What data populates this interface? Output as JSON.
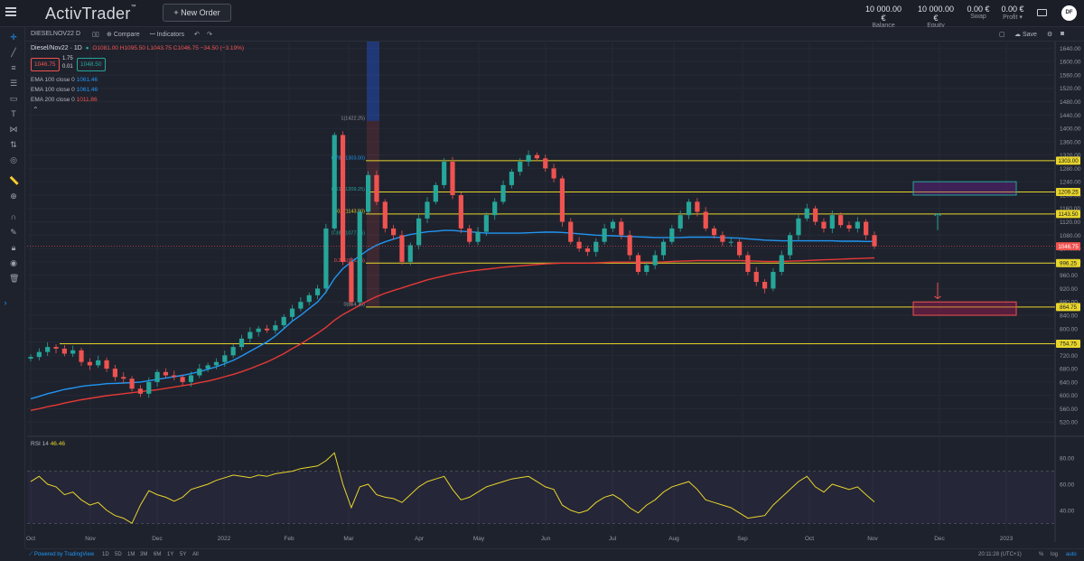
{
  "app": {
    "logo": "ActivTrader",
    "logo_tm": "™",
    "new_order_label": "+ New Order",
    "stats": [
      {
        "value": "10 000.00 €",
        "label": "Balance"
      },
      {
        "value": "10 000.00 €",
        "label": "Equity"
      },
      {
        "value": "0.00 €",
        "label": "Swap"
      },
      {
        "value": "0.00 €",
        "label": "Profit"
      }
    ],
    "avatar": "DF"
  },
  "toolbar": {
    "symbol": "DIESELNOV22",
    "interval": "D",
    "compare": "Compare",
    "indicators": "Indicators",
    "save": "Save"
  },
  "legend": {
    "symbol": "Diesel/Nov22 · 1D",
    "ohlc": "O1081.00  H1095.50  L1043.75  C1046.75  −34.50 (−3.19%)",
    "sell": "1046.75",
    "spread_top": "1.75",
    "spread_bottom": "0.01",
    "buy": "1048.50",
    "ema1": "EMA 100 close 0",
    "ema1_val": "1061.46",
    "ema2": "EMA 100 close 0",
    "ema2_val": "1061.46",
    "ema3": "EMA 200 close 0",
    "ema3_val": "1011.86",
    "rsi": "RSI 14",
    "rsi_val": "46.46"
  },
  "bottombar": {
    "ranges": [
      "1D",
      "5D",
      "1M",
      "3M",
      "6M",
      "1Y",
      "5Y",
      "All"
    ],
    "powered": "Powered by TradingView",
    "clock": "20:11:28 (UTC+1)",
    "pct": "%",
    "log": "log",
    "auto": "auto"
  },
  "colors": {
    "up": "#26a69a",
    "down": "#ef5350",
    "ema100": "#2196f3",
    "ema200": "#e53935",
    "fib": "#e7d52b",
    "rsi": "#e7d52b",
    "bg": "#1e222d"
  },
  "chart_data": {
    "type": "candlestick",
    "y_ticks": [
      1640,
      1600,
      1560,
      1520,
      1480,
      1440,
      1400,
      1360,
      1320,
      1280,
      1240,
      1200,
      1160,
      1120,
      1080,
      1040,
      1000,
      960,
      920,
      880,
      840,
      800,
      760,
      720,
      680,
      640,
      600,
      560,
      520
    ],
    "y_range": [
      480,
      1660
    ],
    "x_ticks": [
      "Oct",
      "Nov",
      "Dec",
      "2022",
      "Feb",
      "Mar",
      "Apr",
      "May",
      "Jun",
      "Jul",
      "Aug",
      "Sep",
      "Oct",
      "Nov",
      "Dec",
      "2023"
    ],
    "fib_levels": [
      {
        "ratio": "1",
        "price": 1422.25,
        "label": "1(1422.25)"
      },
      {
        "ratio": "0.786",
        "price": 1303.0,
        "label": "0.786(1303.00)"
      },
      {
        "ratio": "0.618",
        "price": 1209.25,
        "label": "0.618(1209.25)"
      },
      {
        "ratio": "0.5",
        "price": 1143.5,
        "label": "0.5(1143.50)"
      },
      {
        "ratio": "0.382",
        "price": 1077.75,
        "label": "0.382(1077.75)"
      },
      {
        "ratio": "0.236",
        "price": 996.25,
        "label": "0.236(996.25)"
      },
      {
        "ratio": "0",
        "price": 864.75,
        "label": "0(864.75)"
      }
    ],
    "horizontal_lines": [
      1303.0,
      1209.25,
      1143.5,
      996.25,
      864.75,
      754.75
    ],
    "price_labels": [
      {
        "text": "1303.00",
        "price": 1303.0
      },
      {
        "text": "1209.25",
        "price": 1209.25
      },
      {
        "text": "1143.50",
        "price": 1143.5
      },
      {
        "text": "1046.75",
        "price": 1046.75
      },
      {
        "text": "996.25",
        "price": 996.25
      },
      {
        "text": "864.75",
        "price": 864.75
      },
      {
        "text": "754.75",
        "price": 754.75
      }
    ],
    "last_price": 1046.75,
    "rsi_ticks": [
      "80.00",
      "60.00",
      "40.00"
    ],
    "rsi_band": [
      30,
      70
    ],
    "rsi_last": 46.46,
    "series_close": [
      715,
      730,
      745,
      740,
      725,
      735,
      700,
      690,
      705,
      680,
      655,
      650,
      620,
      605,
      640,
      670,
      660,
      655,
      640,
      660,
      680,
      690,
      700,
      720,
      745,
      770,
      790,
      800,
      795,
      810,
      835,
      860,
      880,
      900,
      920,
      1100,
      1380,
      1000,
      880,
      1150,
      1260,
      1180,
      1100,
      1080,
      1000,
      1050,
      1130,
      1180,
      1230,
      1300,
      1200,
      1100,
      1060,
      1090,
      1140,
      1180,
      1230,
      1270,
      1300,
      1320,
      1310,
      1280,
      1250,
      1120,
      1060,
      1040,
      1030,
      1060,
      1100,
      1120,
      1080,
      1020,
      970,
      990,
      1020,
      1060,
      1100,
      1140,
      1180,
      1150,
      1100,
      1080,
      1060,
      1060,
      1020,
      970,
      940,
      920,
      970,
      1020,
      1080,
      1130,
      1160,
      1120,
      1100,
      1140,
      1110,
      1100,
      1120,
      1080,
      1046.75
    ],
    "ema100": [
      590,
      597,
      605,
      611,
      618,
      622,
      627,
      630,
      632,
      635,
      636,
      637,
      638,
      640,
      644,
      648,
      652,
      656,
      660,
      665,
      671,
      678,
      686,
      695,
      705,
      718,
      732,
      746,
      760,
      778,
      800,
      822,
      840,
      860,
      880,
      910,
      950,
      980,
      1000,
      1018,
      1036,
      1050,
      1060,
      1068,
      1076,
      1082,
      1086,
      1090,
      1092,
      1094,
      1094,
      1092,
      1090,
      1088,
      1086,
      1086,
      1086,
      1086,
      1086,
      1087,
      1088,
      1089,
      1089,
      1088,
      1086,
      1084,
      1082,
      1080,
      1079,
      1078,
      1077,
      1076,
      1075,
      1074,
      1073,
      1073,
      1073,
      1073,
      1074,
      1074,
      1074,
      1074,
      1073,
      1072,
      1071,
      1069,
      1067,
      1065,
      1064,
      1063,
      1063,
      1063,
      1063,
      1063,
      1063,
      1063,
      1062,
      1062,
      1062,
      1061,
      1061.46
    ],
    "ema200": [
      555,
      560,
      566,
      571,
      577,
      582,
      587,
      591,
      595,
      599,
      602,
      605,
      608,
      611,
      614,
      617,
      621,
      625,
      629,
      633,
      638,
      643,
      649,
      656,
      663,
      671,
      680,
      690,
      700,
      712,
      725,
      740,
      754,
      770,
      786,
      804,
      825,
      842,
      856,
      870,
      884,
      896,
      906,
      914,
      922,
      930,
      938,
      946,
      952,
      958,
      964,
      968,
      972,
      975,
      978,
      981,
      984,
      986,
      988,
      990,
      992,
      994,
      995,
      996,
      996,
      996,
      996,
      997,
      998,
      999,
      999,
      999,
      999,
      999,
      999,
      1000,
      1001,
      1002,
      1003,
      1004,
      1004,
      1004,
      1004,
      1004,
      1004,
      1003,
      1002,
      1001,
      1001,
      1001,
      1002,
      1003,
      1004,
      1005,
      1006,
      1007,
      1008,
      1009,
      1010,
      1011,
      1011.86
    ],
    "rsi": [
      62,
      66,
      60,
      58,
      52,
      54,
      48,
      44,
      46,
      40,
      36,
      34,
      30,
      44,
      55,
      52,
      50,
      47,
      50,
      56,
      58,
      60,
      63,
      65,
      67,
      66,
      65,
      67,
      66,
      68,
      69,
      70,
      72,
      73,
      74,
      78,
      84,
      60,
      42,
      58,
      60,
      52,
      50,
      49,
      46,
      52,
      58,
      62,
      64,
      66,
      56,
      48,
      50,
      54,
      58,
      60,
      62,
      64,
      65,
      66,
      62,
      58,
      56,
      44,
      40,
      38,
      40,
      46,
      50,
      52,
      48,
      42,
      38,
      44,
      48,
      54,
      58,
      60,
      62,
      56,
      48,
      46,
      44,
      42,
      38,
      34,
      35,
      36,
      44,
      50,
      56,
      62,
      66,
      58,
      54,
      60,
      58,
      56,
      58,
      52,
      46.46
    ]
  }
}
